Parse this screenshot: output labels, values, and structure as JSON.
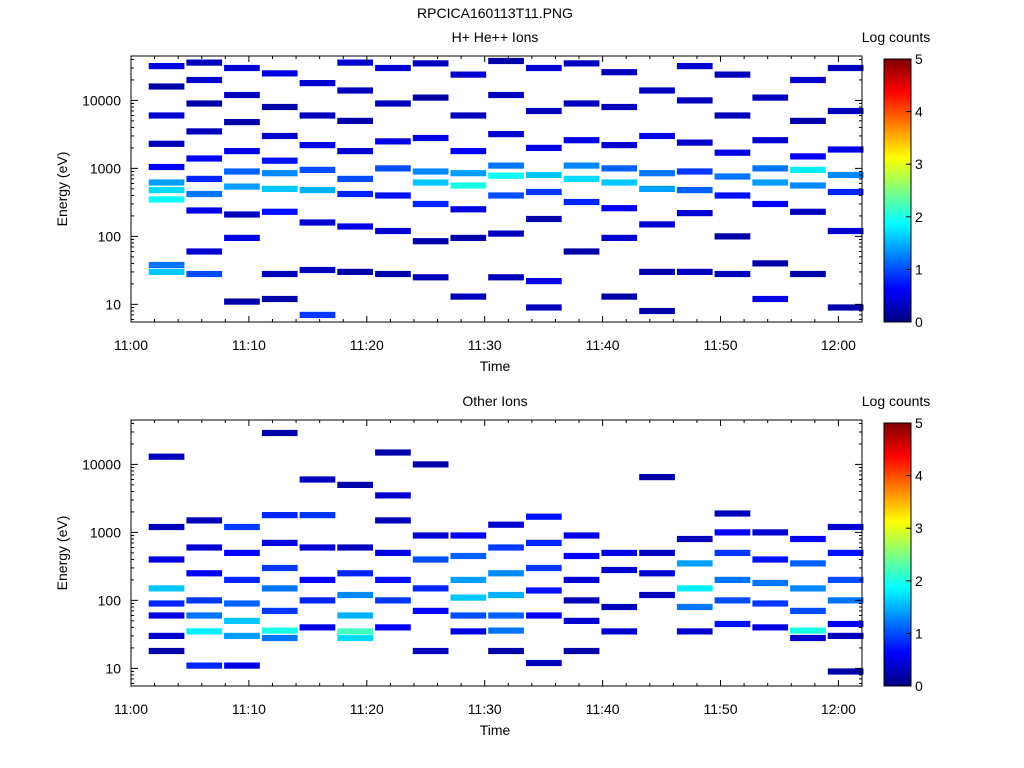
{
  "figure_title": "RPCICA160113T11.PNG",
  "colors": {
    "colormap": [
      "#00007f",
      "#0000ff",
      "#007fff",
      "#00ffff",
      "#7fff7f",
      "#ffff00",
      "#ff7f00",
      "#ff0000",
      "#7f0000"
    ]
  },
  "chart_data": [
    {
      "type": "heatmap",
      "title": "H+ He++ Ions",
      "xlabel": "Time",
      "ylabel": "Energy (eV)",
      "x_ticks": [
        "11:00",
        "11:10",
        "11:20",
        "11:30",
        "11:40",
        "11:50",
        "12:00"
      ],
      "xlim": [
        "11:00",
        "12:02"
      ],
      "y_scale": "log",
      "y_ticks": [
        10,
        100,
        1000,
        10000
      ],
      "y_tick_labels": [
        "10",
        "100",
        "1000",
        "10000"
      ],
      "ylim": [
        5.5,
        45000
      ],
      "colorbar": {
        "label": "Log counts",
        "range": [
          0,
          5
        ],
        "ticks": [
          "0",
          "1",
          "2",
          "3",
          "4",
          "5"
        ]
      },
      "time_bin_starts": [
        "11:01.5",
        "11:04.7",
        "11:07.9",
        "11:11.1",
        "11:14.3",
        "11:17.5",
        "11:20.7",
        "11:23.9",
        "11:27.1",
        "11:30.3",
        "11:33.5",
        "11:36.7",
        "11:39.9",
        "11:43.1",
        "11:46.3",
        "11:49.5",
        "11:52.7",
        "11:55.9",
        "11:59.1"
      ],
      "time_bin_width_min": 3.2,
      "note_values": "log10 counts per time bin and energy bin",
      "cells": [
        [
          0,
          30,
          1.6
        ],
        [
          0,
          38,
          1.2
        ],
        [
          0,
          350,
          1.9
        ],
        [
          0,
          480,
          1.7
        ],
        [
          0,
          620,
          1.4
        ],
        [
          0,
          1050,
          0.6
        ],
        [
          0,
          2300,
          0.3
        ],
        [
          0,
          6000,
          0.4
        ],
        [
          0,
          16000,
          0.2
        ],
        [
          0,
          32000,
          0.5
        ],
        [
          1,
          28,
          1.0
        ],
        [
          1,
          60,
          0.4
        ],
        [
          1,
          240,
          0.5
        ],
        [
          1,
          420,
          1.2
        ],
        [
          1,
          700,
          0.8
        ],
        [
          1,
          1400,
          0.6
        ],
        [
          1,
          3500,
          0.3
        ],
        [
          1,
          9000,
          0.2
        ],
        [
          1,
          20000,
          0.4
        ],
        [
          1,
          36000,
          0.3
        ],
        [
          2,
          11,
          0.2
        ],
        [
          2,
          95,
          0.5
        ],
        [
          2,
          210,
          0.3
        ],
        [
          2,
          540,
          1.4
        ],
        [
          2,
          900,
          1.1
        ],
        [
          2,
          1800,
          0.5
        ],
        [
          2,
          4800,
          0.2
        ],
        [
          2,
          12000,
          0.3
        ],
        [
          2,
          30000,
          0.4
        ],
        [
          3,
          12,
          0.2
        ],
        [
          3,
          28,
          0.3
        ],
        [
          3,
          230,
          0.7
        ],
        [
          3,
          500,
          1.6
        ],
        [
          3,
          850,
          1.3
        ],
        [
          3,
          1300,
          0.7
        ],
        [
          3,
          3000,
          0.4
        ],
        [
          3,
          8000,
          0.2
        ],
        [
          3,
          25000,
          0.5
        ],
        [
          4,
          7,
          0.9
        ],
        [
          4,
          32,
          0.3
        ],
        [
          4,
          160,
          0.4
        ],
        [
          4,
          480,
          1.5
        ],
        [
          4,
          950,
          1.0
        ],
        [
          4,
          2200,
          0.5
        ],
        [
          4,
          6000,
          0.3
        ],
        [
          4,
          18000,
          0.4
        ],
        [
          5,
          30,
          0.2
        ],
        [
          5,
          140,
          0.5
        ],
        [
          5,
          420,
          0.8
        ],
        [
          5,
          700,
          1.0
        ],
        [
          5,
          1800,
          0.4
        ],
        [
          5,
          5000,
          0.2
        ],
        [
          5,
          14000,
          0.3
        ],
        [
          5,
          36000,
          0.4
        ],
        [
          6,
          28,
          0.2
        ],
        [
          6,
          120,
          0.4
        ],
        [
          6,
          400,
          0.7
        ],
        [
          6,
          1000,
          1.0
        ],
        [
          6,
          2500,
          0.5
        ],
        [
          6,
          9000,
          0.3
        ],
        [
          6,
          30000,
          0.4
        ],
        [
          7,
          25,
          0.3
        ],
        [
          7,
          85,
          0.2
        ],
        [
          7,
          300,
          0.8
        ],
        [
          7,
          620,
          1.6
        ],
        [
          7,
          900,
          1.3
        ],
        [
          7,
          2800,
          0.5
        ],
        [
          7,
          11000,
          0.2
        ],
        [
          7,
          35000,
          0.3
        ],
        [
          8,
          13,
          0.3
        ],
        [
          8,
          95,
          0.2
        ],
        [
          8,
          250,
          0.5
        ],
        [
          8,
          560,
          2.0
        ],
        [
          8,
          850,
          1.4
        ],
        [
          8,
          1800,
          0.6
        ],
        [
          8,
          6000,
          0.3
        ],
        [
          8,
          24000,
          0.4
        ],
        [
          9,
          25,
          0.3
        ],
        [
          9,
          110,
          0.3
        ],
        [
          9,
          400,
          1.0
        ],
        [
          9,
          780,
          1.9
        ],
        [
          9,
          1100,
          1.2
        ],
        [
          9,
          3200,
          0.4
        ],
        [
          9,
          12000,
          0.3
        ],
        [
          9,
          38000,
          0.2
        ],
        [
          10,
          9,
          0.3
        ],
        [
          10,
          22,
          0.5
        ],
        [
          10,
          180,
          0.2
        ],
        [
          10,
          450,
          0.9
        ],
        [
          10,
          800,
          1.6
        ],
        [
          10,
          2000,
          0.5
        ],
        [
          10,
          7000,
          0.3
        ],
        [
          10,
          30000,
          0.4
        ],
        [
          11,
          60,
          0.2
        ],
        [
          11,
          320,
          0.8
        ],
        [
          11,
          700,
          1.7
        ],
        [
          11,
          1100,
          1.3
        ],
        [
          11,
          2600,
          0.5
        ],
        [
          11,
          9000,
          0.3
        ],
        [
          11,
          35000,
          0.3
        ],
        [
          12,
          13,
          0.2
        ],
        [
          12,
          95,
          0.4
        ],
        [
          12,
          260,
          0.6
        ],
        [
          12,
          620,
          1.6
        ],
        [
          12,
          1000,
          1.1
        ],
        [
          12,
          2200,
          0.4
        ],
        [
          12,
          8000,
          0.3
        ],
        [
          12,
          26000,
          0.3
        ],
        [
          13,
          8,
          0.2
        ],
        [
          13,
          30,
          0.2
        ],
        [
          13,
          150,
          0.4
        ],
        [
          13,
          500,
          1.4
        ],
        [
          13,
          850,
          1.2
        ],
        [
          13,
          3000,
          0.5
        ],
        [
          13,
          14000,
          0.3
        ],
        [
          14,
          30,
          0.3
        ],
        [
          14,
          220,
          0.4
        ],
        [
          14,
          480,
          1.1
        ],
        [
          14,
          900,
          0.9
        ],
        [
          14,
          2400,
          0.4
        ],
        [
          14,
          10000,
          0.3
        ],
        [
          14,
          32000,
          0.4
        ],
        [
          15,
          28,
          0.3
        ],
        [
          15,
          100,
          0.2
        ],
        [
          15,
          400,
          0.7
        ],
        [
          15,
          760,
          1.2
        ],
        [
          15,
          1700,
          0.5
        ],
        [
          15,
          6000,
          0.3
        ],
        [
          15,
          24000,
          0.3
        ],
        [
          16,
          12,
          0.5
        ],
        [
          16,
          40,
          0.2
        ],
        [
          16,
          300,
          0.6
        ],
        [
          16,
          620,
          1.4
        ],
        [
          16,
          1000,
          1.2
        ],
        [
          16,
          2600,
          0.4
        ],
        [
          16,
          11000,
          0.3
        ],
        [
          17,
          28,
          0.2
        ],
        [
          17,
          230,
          0.3
        ],
        [
          17,
          560,
          1.3
        ],
        [
          17,
          950,
          1.8
        ],
        [
          17,
          1500,
          0.6
        ],
        [
          17,
          5000,
          0.2
        ],
        [
          17,
          20000,
          0.4
        ],
        [
          18,
          9,
          0.2
        ],
        [
          18,
          120,
          0.4
        ],
        [
          18,
          450,
          0.8
        ],
        [
          18,
          800,
          1.3
        ],
        [
          18,
          1900,
          0.5
        ],
        [
          18,
          7000,
          0.3
        ],
        [
          18,
          30000,
          0.3
        ]
      ]
    },
    {
      "type": "heatmap",
      "title": "Other Ions",
      "xlabel": "Time",
      "ylabel": "Energy (eV)",
      "x_ticks": [
        "11:00",
        "11:10",
        "11:20",
        "11:30",
        "11:40",
        "11:50",
        "12:00"
      ],
      "xlim": [
        "11:00",
        "12:02"
      ],
      "y_scale": "log",
      "y_ticks": [
        10,
        100,
        1000,
        10000
      ],
      "y_tick_labels": [
        "10",
        "100",
        "1000",
        "10000"
      ],
      "ylim": [
        5.5,
        45000
      ],
      "colorbar": {
        "label": "Log counts",
        "range": [
          0,
          5
        ],
        "ticks": [
          "0",
          "1",
          "2",
          "3",
          "4",
          "5"
        ]
      },
      "time_bin_starts": [
        "11:01.5",
        "11:04.7",
        "11:07.9",
        "11:11.1",
        "11:14.3",
        "11:17.5",
        "11:20.7",
        "11:23.9",
        "11:27.1",
        "11:30.3",
        "11:33.5",
        "11:36.7",
        "11:39.9",
        "11:43.1",
        "11:46.3",
        "11:49.5",
        "11:52.7",
        "11:55.9",
        "11:59.1"
      ],
      "time_bin_width_min": 3.2,
      "note_values": "log10 counts per time bin and energy bin",
      "cells": [
        [
          0,
          13000,
          0.3
        ],
        [
          0,
          1200,
          0.3
        ],
        [
          0,
          400,
          0.5
        ],
        [
          0,
          150,
          1.6
        ],
        [
          0,
          90,
          0.8
        ],
        [
          0,
          60,
          0.5
        ],
        [
          0,
          30,
          0.4
        ],
        [
          0,
          18,
          0.2
        ],
        [
          1,
          1500,
          0.3
        ],
        [
          1,
          600,
          0.4
        ],
        [
          1,
          250,
          0.6
        ],
        [
          1,
          100,
          0.9
        ],
        [
          1,
          60,
          1.2
        ],
        [
          1,
          35,
          1.8
        ],
        [
          1,
          11,
          0.8
        ],
        [
          2,
          1200,
          0.9
        ],
        [
          2,
          500,
          0.6
        ],
        [
          2,
          200,
          0.8
        ],
        [
          2,
          90,
          1.1
        ],
        [
          2,
          50,
          1.6
        ],
        [
          2,
          30,
          1.4
        ],
        [
          2,
          11,
          0.5
        ],
        [
          3,
          29000,
          0.2
        ],
        [
          3,
          1800,
          0.8
        ],
        [
          3,
          700,
          0.5
        ],
        [
          3,
          300,
          0.9
        ],
        [
          3,
          150,
          1.2
        ],
        [
          3,
          70,
          0.9
        ],
        [
          3,
          36,
          2.0
        ],
        [
          3,
          28,
          1.2
        ],
        [
          4,
          6000,
          0.3
        ],
        [
          4,
          1800,
          0.9
        ],
        [
          4,
          600,
          0.4
        ],
        [
          4,
          200,
          0.6
        ],
        [
          4,
          100,
          0.8
        ],
        [
          4,
          40,
          0.5
        ],
        [
          5,
          5000,
          0.2
        ],
        [
          5,
          600,
          0.3
        ],
        [
          5,
          250,
          0.8
        ],
        [
          5,
          120,
          1.3
        ],
        [
          5,
          60,
          1.5
        ],
        [
          5,
          35,
          2.2
        ],
        [
          5,
          28,
          1.7
        ],
        [
          6,
          15000,
          0.2
        ],
        [
          6,
          3500,
          0.4
        ],
        [
          6,
          1500,
          0.3
        ],
        [
          6,
          500,
          0.5
        ],
        [
          6,
          200,
          0.7
        ],
        [
          6,
          100,
          0.9
        ],
        [
          6,
          40,
          0.6
        ],
        [
          7,
          10000,
          0.2
        ],
        [
          7,
          900,
          0.4
        ],
        [
          7,
          400,
          1.0
        ],
        [
          7,
          150,
          0.8
        ],
        [
          7,
          70,
          0.6
        ],
        [
          7,
          18,
          0.3
        ],
        [
          8,
          900,
          0.6
        ],
        [
          8,
          450,
          1.1
        ],
        [
          8,
          200,
          1.4
        ],
        [
          8,
          110,
          1.6
        ],
        [
          8,
          60,
          1.0
        ],
        [
          8,
          35,
          0.5
        ],
        [
          9,
          1300,
          0.4
        ],
        [
          9,
          600,
          0.9
        ],
        [
          9,
          250,
          1.3
        ],
        [
          9,
          120,
          1.5
        ],
        [
          9,
          60,
          1.1
        ],
        [
          9,
          36,
          1.2
        ],
        [
          9,
          18,
          0.2
        ],
        [
          10,
          1700,
          0.7
        ],
        [
          10,
          700,
          0.8
        ],
        [
          10,
          300,
          0.9
        ],
        [
          10,
          140,
          0.7
        ],
        [
          10,
          60,
          0.6
        ],
        [
          10,
          12,
          0.3
        ],
        [
          11,
          900,
          0.5
        ],
        [
          11,
          450,
          0.6
        ],
        [
          11,
          200,
          0.4
        ],
        [
          11,
          100,
          0.3
        ],
        [
          11,
          50,
          0.4
        ],
        [
          11,
          18,
          0.2
        ],
        [
          12,
          500,
          0.5
        ],
        [
          12,
          280,
          0.4
        ],
        [
          12,
          80,
          0.3
        ],
        [
          12,
          35,
          0.4
        ],
        [
          13,
          6500,
          0.2
        ],
        [
          13,
          500,
          0.3
        ],
        [
          13,
          250,
          0.4
        ],
        [
          13,
          120,
          0.3
        ],
        [
          14,
          800,
          0.3
        ],
        [
          14,
          350,
          1.4
        ],
        [
          14,
          150,
          1.8
        ],
        [
          14,
          80,
          1.2
        ],
        [
          14,
          35,
          0.4
        ],
        [
          15,
          1900,
          0.3
        ],
        [
          15,
          1000,
          0.6
        ],
        [
          15,
          500,
          0.9
        ],
        [
          15,
          200,
          1.2
        ],
        [
          15,
          100,
          1.0
        ],
        [
          15,
          45,
          0.7
        ],
        [
          16,
          1000,
          0.4
        ],
        [
          16,
          400,
          0.7
        ],
        [
          16,
          180,
          1.2
        ],
        [
          16,
          90,
          0.9
        ],
        [
          16,
          40,
          0.5
        ],
        [
          17,
          800,
          0.6
        ],
        [
          17,
          350,
          1.1
        ],
        [
          17,
          150,
          1.3
        ],
        [
          17,
          70,
          1.0
        ],
        [
          17,
          36,
          2.0
        ],
        [
          17,
          28,
          0.4
        ],
        [
          18,
          1200,
          0.4
        ],
        [
          18,
          500,
          0.7
        ],
        [
          18,
          200,
          1.0
        ],
        [
          18,
          100,
          1.2
        ],
        [
          18,
          45,
          0.6
        ],
        [
          18,
          30,
          0.3
        ],
        [
          18,
          9,
          0.2
        ]
      ]
    }
  ]
}
